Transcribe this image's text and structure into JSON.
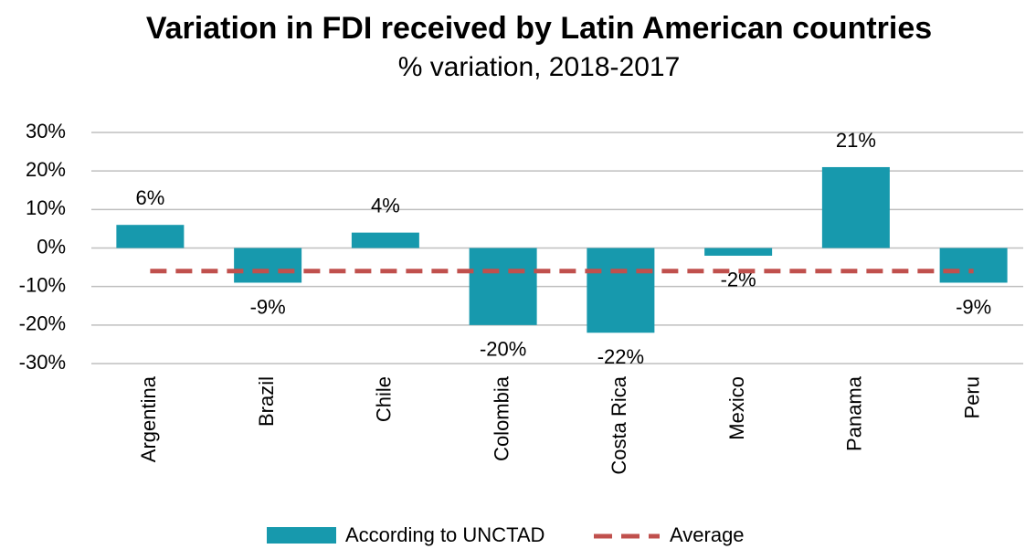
{
  "chart_data": {
    "type": "bar",
    "title": "Variation in FDI received by Latin American countries",
    "subtitle": "% variation, 2018-2017",
    "categories": [
      "Argentina",
      "Brazil",
      "Chile",
      "Colombia",
      "Costa Rica",
      "Mexico",
      "Panama",
      "Peru"
    ],
    "series": [
      {
        "name": "According to UNCTAD",
        "color": "#1799ad",
        "values": [
          6,
          -9,
          4,
          -20,
          -22,
          -2,
          21,
          -9
        ],
        "value_labels": [
          "6%",
          "-9%",
          "4%",
          "-20%",
          "-22%",
          "-2%",
          "21%",
          "-9%"
        ]
      }
    ],
    "average": {
      "name": "Average",
      "value": -6,
      "color": "#c0504d"
    },
    "ylim": [
      -30,
      30
    ],
    "yticks": [
      {
        "value": -30,
        "label": "-30%"
      },
      {
        "value": -20,
        "label": "-20%"
      },
      {
        "value": -10,
        "label": "-10%"
      },
      {
        "value": 0,
        "label": "0%"
      },
      {
        "value": 10,
        "label": "10%"
      },
      {
        "value": 20,
        "label": "20%"
      },
      {
        "value": 30,
        "label": "30%"
      }
    ],
    "grid": true,
    "legend": "bottom"
  }
}
